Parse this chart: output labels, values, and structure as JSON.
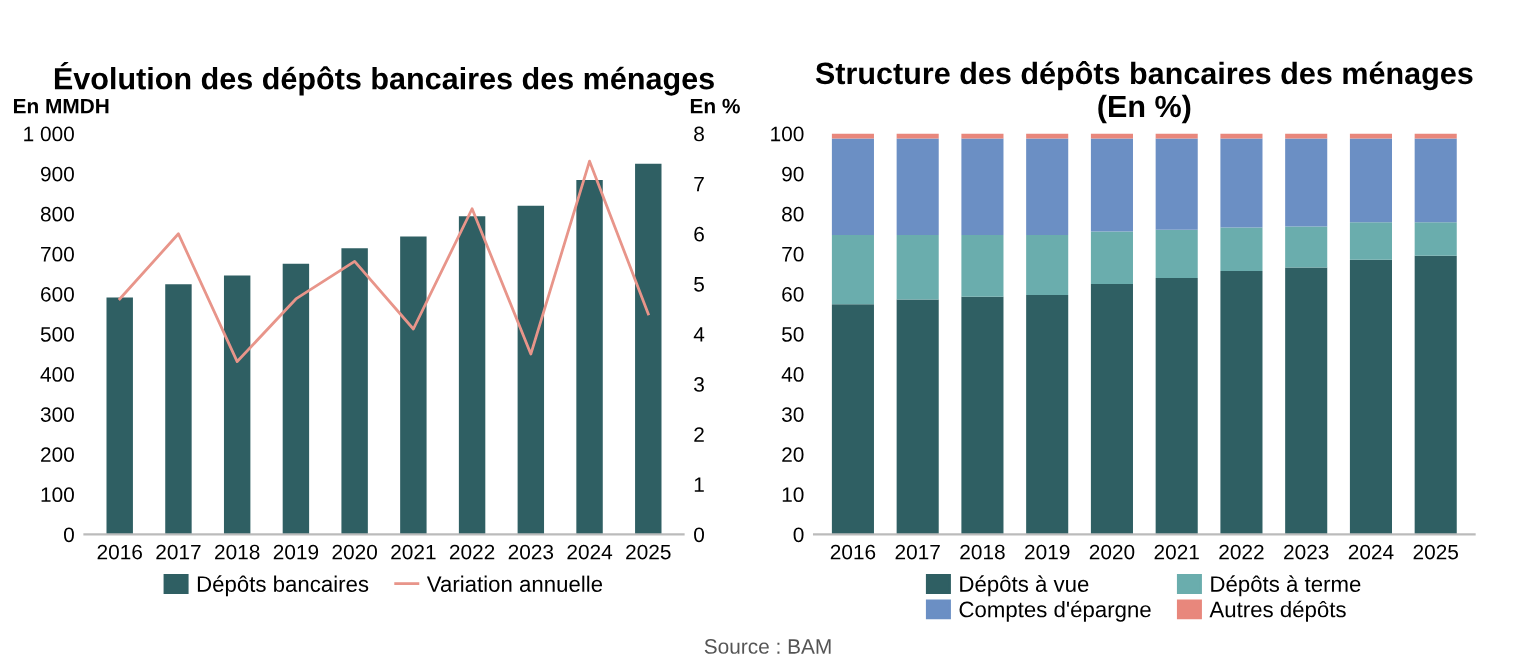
{
  "chart_data": [
    {
      "type": "bar",
      "title": "Évolution des dépôts bancaires des ménages",
      "ylabel": "En MMDH",
      "y2label": "En %",
      "categories": [
        "2016",
        "2017",
        "2018",
        "2019",
        "2020",
        "2021",
        "2022",
        "2023",
        "2024",
        "2025"
      ],
      "series": [
        {
          "name": "Dépôts bancaires",
          "color": "#2f5f63",
          "values": [
            591,
            624,
            646,
            675,
            714,
            743,
            794,
            820,
            884,
            925
          ]
        },
        {
          "name": "Variation annuelle",
          "type": "line",
          "axis": "y2",
          "color": "#e8958a",
          "values": [
            4.7,
            6.0,
            3.45,
            4.7,
            5.45,
            4.1,
            6.5,
            3.6,
            7.45,
            4.4
          ]
        }
      ],
      "ylim": [
        0,
        1000
      ],
      "yticks": [
        0,
        100,
        200,
        300,
        400,
        500,
        600,
        700,
        800,
        900,
        {
          "value": 1000,
          "label": "1 000"
        }
      ],
      "y2lim": [
        0,
        8
      ],
      "y2ticks": [
        0,
        1,
        2,
        3,
        4,
        5,
        6,
        7,
        8
      ],
      "grid": false,
      "legend": "bottom",
      "marker": "none",
      "line_style": "solid"
    },
    {
      "type": "bar",
      "title": "Structure des dépôts bancaires des ménages\n(En %)",
      "stacked": true,
      "categories": [
        "2016",
        "2017",
        "2018",
        "2019",
        "2020",
        "2021",
        "2022",
        "2023",
        "2024",
        "2025"
      ],
      "series": [
        {
          "name": "Dépôts à vue",
          "color": "#2f5f63",
          "values": [
            57.4,
            58.6,
            59.3,
            59.7,
            62.5,
            64.0,
            65.7,
            66.6,
            68.5,
            69.5
          ]
        },
        {
          "name": "Dépôts à terme",
          "color": "#6aadad",
          "values": [
            17.3,
            16.1,
            15.4,
            15.0,
            13.1,
            12.0,
            10.9,
            10.2,
            9.4,
            8.4
          ]
        },
        {
          "name": "Comptes d'épargne",
          "color": "#6b8fc4",
          "values": [
            24.1,
            24.1,
            24.1,
            24.1,
            23.2,
            22.8,
            22.2,
            22.0,
            20.9,
            20.9
          ]
        },
        {
          "name": "Autres dépôts",
          "color": "#e8877c",
          "values": [
            1.2,
            1.2,
            1.2,
            1.2,
            1.2,
            1.2,
            1.2,
            1.2,
            1.2,
            1.2
          ]
        }
      ],
      "ylim": [
        0,
        100
      ],
      "yticks": [
        0,
        10,
        20,
        30,
        40,
        50,
        60,
        70,
        80,
        90,
        100
      ],
      "grid": false,
      "legend": "bottom",
      "annotations": [
        "Source : BAM"
      ]
    }
  ]
}
